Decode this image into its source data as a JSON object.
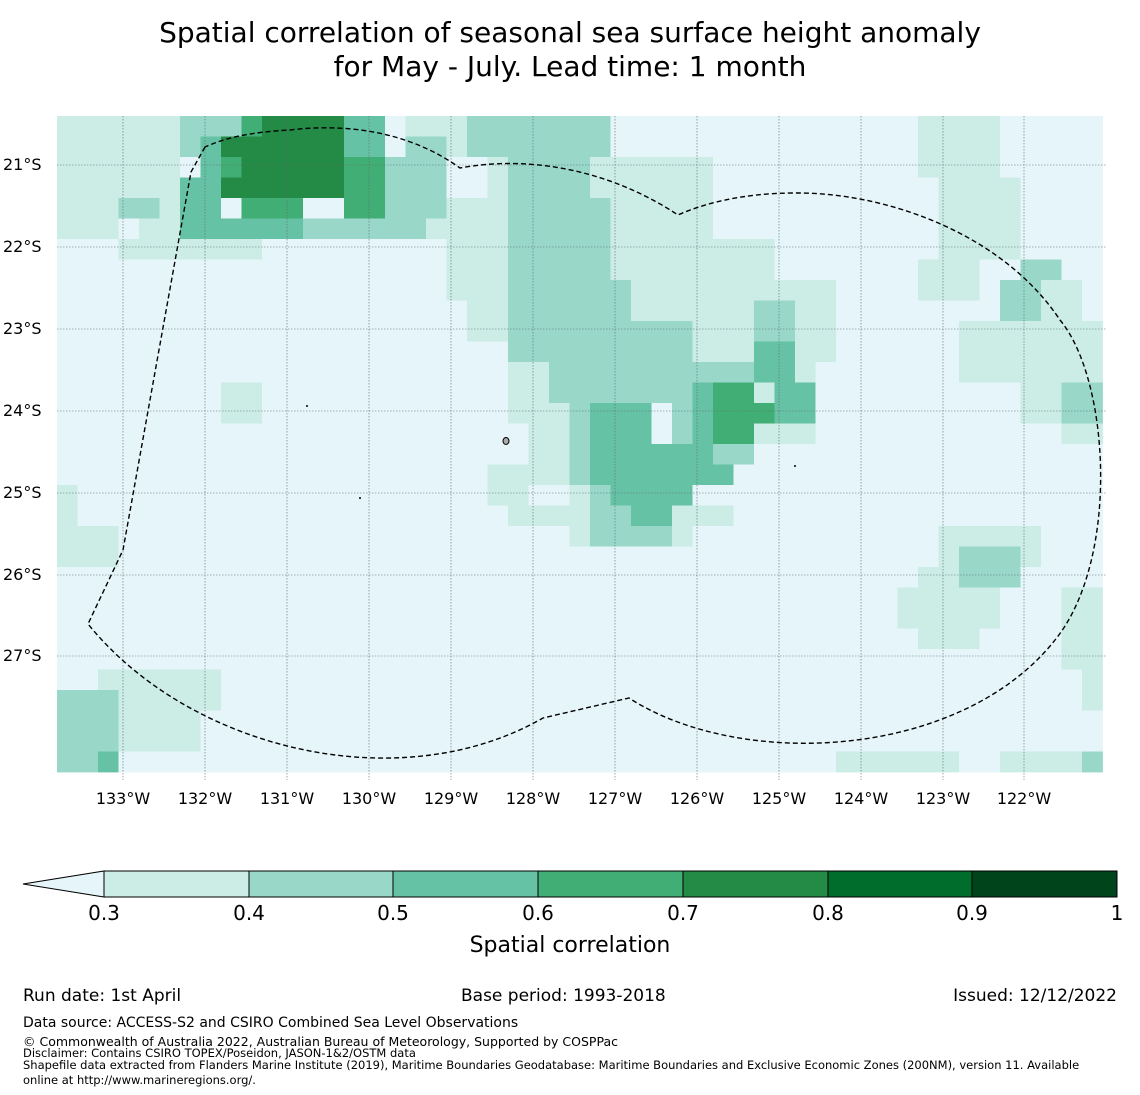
{
  "title": {
    "line1": "Spatial correlation of seasonal sea surface height anomaly",
    "line2": "for May - July. Lead time: 1 month"
  },
  "map": {
    "lat_labels": [
      "21°S",
      "22°S",
      "23°S",
      "24°S",
      "25°S",
      "26°S",
      "27°S"
    ],
    "lon_labels": [
      "133°W",
      "132°W",
      "131°W",
      "130°W",
      "129°W",
      "128°W",
      "127°W",
      "126°W",
      "125°W",
      "124°W",
      "123°W",
      "122°W"
    ],
    "colors": {
      "ocean": "#e5f5f9",
      "c1": "#ccece6",
      "c2": "#99d8c9",
      "c3": "#66c2a4",
      "c4": "#41ae76",
      "c5": "#238b45",
      "c6": "#006d2c",
      "c7": "#00441b",
      "grid": "#5a6a70",
      "boundary": "#000000"
    }
  },
  "colorbar": {
    "ticks": [
      "0.3",
      "0.4",
      "0.5",
      "0.6",
      "0.7",
      "0.8",
      "0.9",
      "1"
    ],
    "label": "Spatial correlation"
  },
  "footer": {
    "run_date": "Run date: 1st April",
    "base_period": "Base period: 1993-2018",
    "issued": "Issued: 12/12/2022",
    "data_source": "Data source: ACCESS-S2 and CSIRO Combined Sea Level Observations",
    "copyright": "© Commonwealth of Australia 2022, Australian Bureau of Meteorology, Supported by COSPPac",
    "disclaimer": "Disclaimer: Contains CSIRO TOPEX/Poseidon, JASON-1&2/OSTM data",
    "shapefile_line1": "Shapefile data extracted from Flanders Marine Institute (2019), Maritime Boundaries Geodatabase: Maritime Boundaries and Exclusive Economic Zones (200NM), version 11. Available",
    "shapefile_line2": "online at http://www.marineregions.org/."
  }
}
